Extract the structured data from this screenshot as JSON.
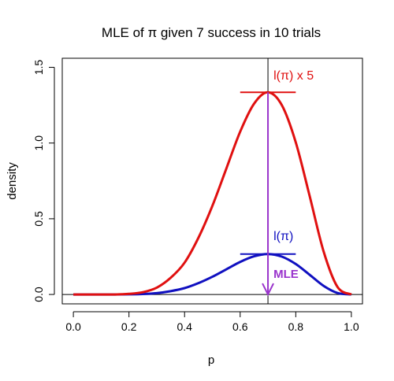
{
  "chart_data": {
    "type": "line",
    "title": "MLE of π given 7 success in 10 trials",
    "xlabel": "p",
    "ylabel": "density",
    "xlim": [
      -0.04,
      1.04
    ],
    "ylim": [
      -0.062,
      1.56
    ],
    "xticks": [
      0.0,
      0.2,
      0.4,
      0.6,
      0.8,
      1.0
    ],
    "xtick_labels": [
      "0.0",
      "0.2",
      "0.4",
      "0.6",
      "0.8",
      "1.0"
    ],
    "yticks": [
      0.0,
      0.5,
      1.0,
      1.5
    ],
    "ytick_labels": [
      "0.0",
      "0.5",
      "1.0",
      "1.5"
    ],
    "grid": false,
    "series": [
      {
        "name": "l(π)",
        "color": "#1010c0",
        "x": [
          0.0,
          0.05,
          0.1,
          0.15,
          0.2,
          0.25,
          0.3,
          0.35,
          0.4,
          0.45,
          0.5,
          0.55,
          0.6,
          0.65,
          0.7,
          0.75,
          0.8,
          0.85,
          0.9,
          0.95,
          1.0
        ],
        "y": [
          0.0,
          0.0,
          0.0,
          0.0,
          0.0008,
          0.003,
          0.009,
          0.022,
          0.042,
          0.075,
          0.117,
          0.166,
          0.215,
          0.252,
          0.267,
          0.25,
          0.201,
          0.13,
          0.057,
          0.01,
          0.0
        ]
      },
      {
        "name": "l(π) x 5",
        "color": "#e01010",
        "x": [
          0.0,
          0.05,
          0.1,
          0.15,
          0.2,
          0.25,
          0.3,
          0.35,
          0.4,
          0.45,
          0.5,
          0.55,
          0.6,
          0.65,
          0.7,
          0.75,
          0.8,
          0.85,
          0.9,
          0.95,
          1.0
        ],
        "y": [
          0.0,
          0.0,
          0.0,
          0.0,
          0.004,
          0.015,
          0.045,
          0.11,
          0.21,
          0.375,
          0.585,
          0.83,
          1.075,
          1.26,
          1.335,
          1.25,
          1.005,
          0.65,
          0.285,
          0.05,
          0.0
        ]
      }
    ],
    "annotations": [
      {
        "type": "hline",
        "y": 0,
        "color": "#000000"
      },
      {
        "type": "vline",
        "x": 0.7,
        "color": "#000000"
      },
      {
        "type": "segment",
        "x0": 0.6,
        "x1": 0.8,
        "y": 1.335,
        "color": "#e01010"
      },
      {
        "type": "segment",
        "x0": 0.6,
        "x1": 0.8,
        "y": 0.267,
        "color": "#1010c0"
      },
      {
        "type": "arrow",
        "x": 0.7,
        "y0": 1.335,
        "y1": 0.0,
        "color": "#9933cc"
      },
      {
        "type": "label",
        "text": "l(π) x 5",
        "x": 0.72,
        "y": 1.42,
        "color": "#e01010"
      },
      {
        "type": "label",
        "text": "l(π)",
        "x": 0.72,
        "y": 0.36,
        "color": "#1010c0"
      },
      {
        "type": "label",
        "text": "MLE",
        "x": 0.72,
        "y": 0.11,
        "color": "#9933cc"
      }
    ]
  }
}
